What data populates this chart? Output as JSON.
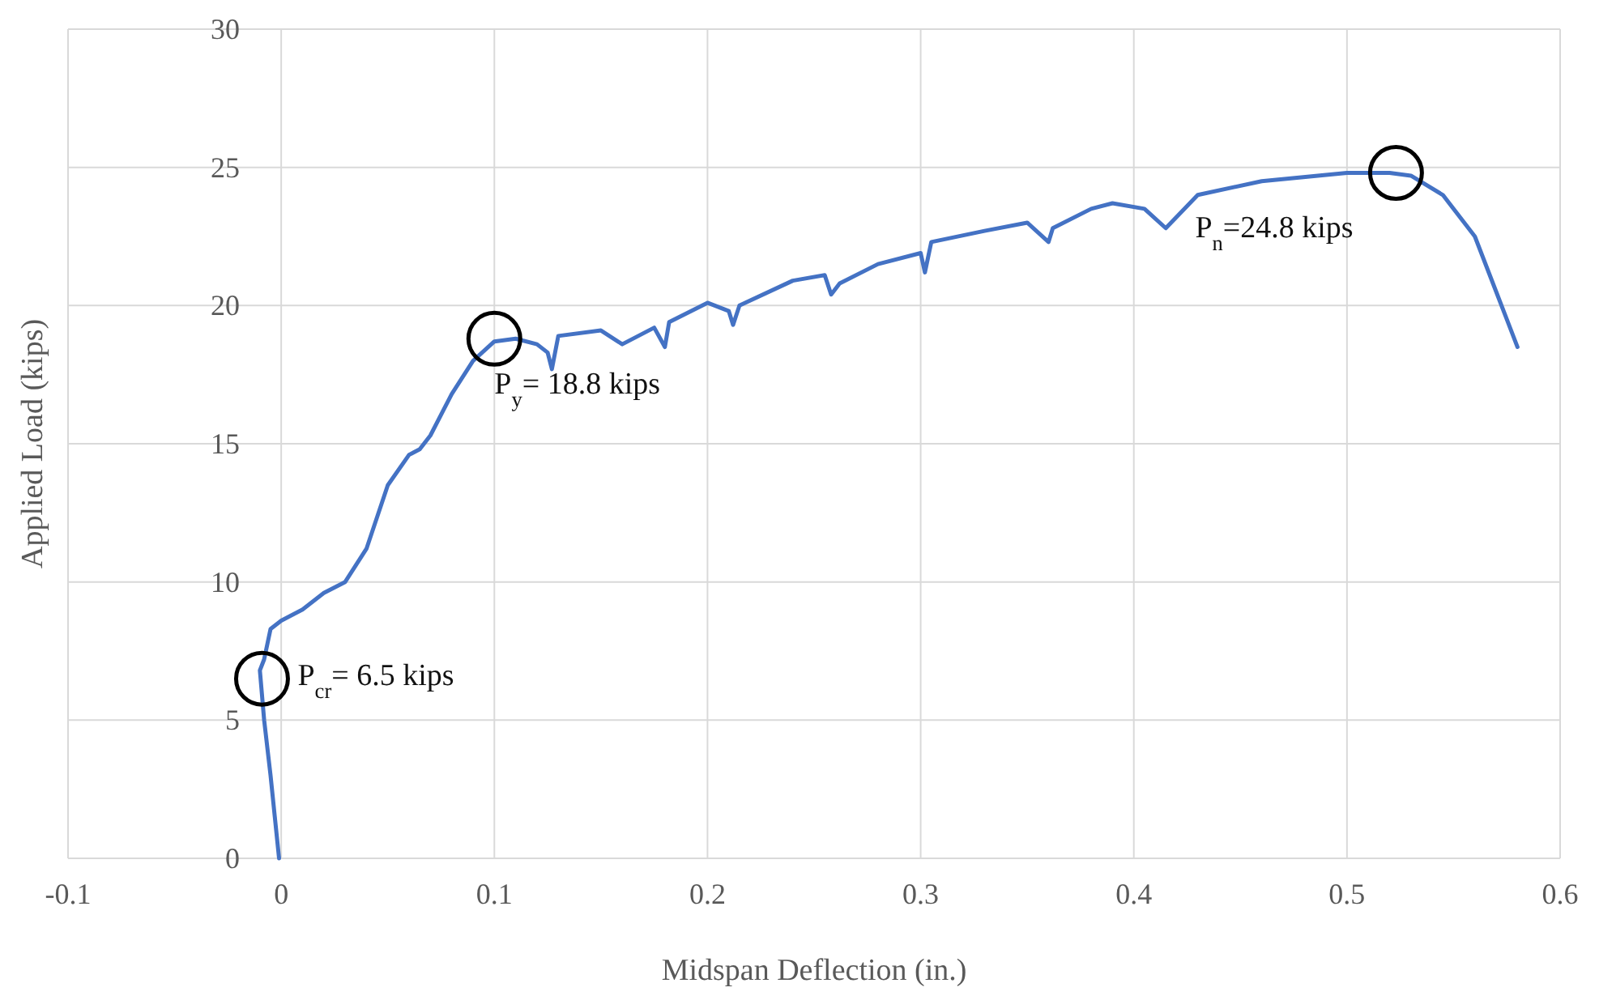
{
  "chart_data": {
    "type": "line",
    "xlabel": "Midspan Deflection  (in.)",
    "ylabel": "Applied  Load (kips)",
    "xlim": [
      -0.1,
      0.6
    ],
    "xticks": [
      -0.1,
      0,
      0.1,
      0.2,
      0.3,
      0.4,
      0.5,
      0.6
    ],
    "ylim": [
      0,
      30
    ],
    "yticks": [
      0,
      5,
      10,
      15,
      20,
      25,
      30
    ],
    "grid": true,
    "marker": "none",
    "line_style": "solid",
    "series": [
      {
        "color": "#4472c4",
        "x": [
          -0.001,
          -0.003,
          -0.005,
          -0.008,
          -0.01,
          -0.008,
          -0.005,
          0,
          0.01,
          0.02,
          0.03,
          0.04,
          0.05,
          0.06,
          0.065,
          0.07,
          0.08,
          0.09,
          0.1,
          0.11,
          0.12,
          0.125,
          0.127,
          0.13,
          0.15,
          0.16,
          0.175,
          0.18,
          0.182,
          0.2,
          0.21,
          0.212,
          0.215,
          0.24,
          0.255,
          0.258,
          0.262,
          0.28,
          0.3,
          0.302,
          0.305,
          0.33,
          0.35,
          0.36,
          0.362,
          0.38,
          0.39,
          0.405,
          0.415,
          0.43,
          0.46,
          0.5,
          0.52,
          0.53,
          0.545,
          0.56,
          0.57,
          0.575,
          0.58
        ],
        "values": [
          0,
          1.5,
          3,
          5,
          6.8,
          7.2,
          8.3,
          8.6,
          9,
          9.6,
          10,
          11.2,
          13.5,
          14.6,
          14.8,
          15.3,
          16.8,
          18,
          18.7,
          18.8,
          18.6,
          18.3,
          17.7,
          18.9,
          19.1,
          18.6,
          19.2,
          18.5,
          19.4,
          20.1,
          19.8,
          19.3,
          20,
          20.9,
          21.1,
          20.4,
          20.8,
          21.5,
          21.9,
          21.2,
          22.3,
          22.7,
          23,
          22.3,
          22.8,
          23.5,
          23.7,
          23.5,
          22.8,
          24,
          24.5,
          24.8,
          24.8,
          24.7,
          24,
          22.5,
          20.5,
          19.5,
          18.5
        ]
      }
    ],
    "annotations": [
      {
        "text": "P$_{cr}$= 6.5 kips",
        "x": -0.009,
        "y": 6.5
      },
      {
        "text": "P$_{y}$= 18.8 kips",
        "x": 0.1,
        "y": 18.8
      },
      {
        "text": "P$_{n}$=24.8 kips",
        "x": 0.523,
        "y": 24.8
      }
    ]
  }
}
